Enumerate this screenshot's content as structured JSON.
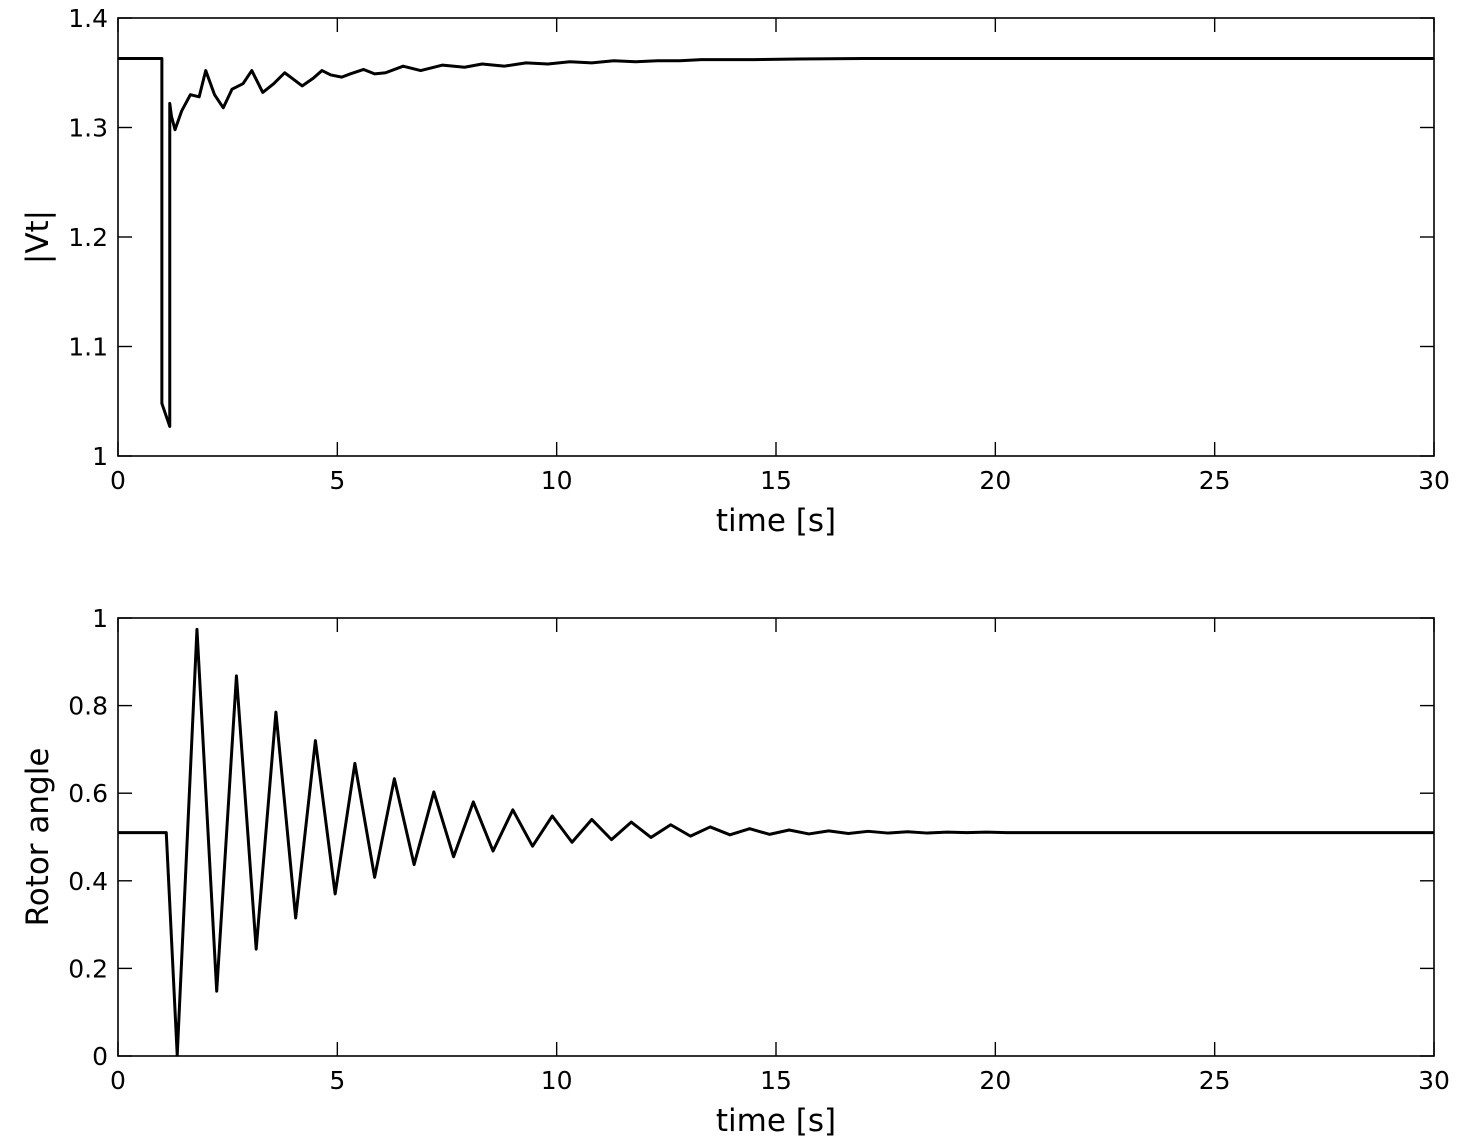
{
  "chart_data": [
    {
      "type": "line",
      "title": "",
      "xlabel": "time [s]",
      "ylabel": "|Vt|",
      "xlim": [
        0,
        30
      ],
      "ylim": [
        1,
        1.4
      ],
      "xticks": [
        0,
        5,
        10,
        15,
        20,
        25,
        30
      ],
      "xtick_labels": [
        "0",
        "5",
        "10",
        "15",
        "20",
        "25",
        "30"
      ],
      "yticks": [
        1,
        1.1,
        1.2,
        1.3,
        1.4
      ],
      "ytick_labels": [
        "1",
        "1.1",
        "1.2",
        "1.3",
        "1.4"
      ],
      "grid": false,
      "series": [
        {
          "color": "#000000",
          "x": [
            0,
            1.0,
            1.0,
            1.18,
            1.18,
            1.22,
            1.3,
            1.45,
            1.65,
            1.85,
            2.0,
            2.2,
            2.4,
            2.6,
            2.85,
            3.05,
            3.3,
            3.55,
            3.8,
            4.0,
            4.2,
            4.45,
            4.65,
            4.85,
            5.1,
            5.3,
            5.6,
            5.85,
            6.1,
            6.5,
            6.9,
            7.4,
            7.9,
            8.3,
            8.8,
            9.3,
            9.8,
            10.3,
            10.8,
            11.3,
            11.8,
            12.3,
            12.8,
            13.3,
            13.8,
            14.5,
            15.5,
            17,
            20,
            25,
            30
          ],
          "y": [
            1.363,
            1.363,
            1.048,
            1.027,
            1.322,
            1.31,
            1.298,
            1.315,
            1.33,
            1.328,
            1.352,
            1.33,
            1.318,
            1.335,
            1.34,
            1.352,
            1.332,
            1.34,
            1.35,
            1.344,
            1.338,
            1.345,
            1.352,
            1.348,
            1.346,
            1.349,
            1.353,
            1.349,
            1.35,
            1.356,
            1.352,
            1.357,
            1.355,
            1.358,
            1.356,
            1.359,
            1.358,
            1.36,
            1.359,
            1.361,
            1.36,
            1.361,
            1.361,
            1.362,
            1.362,
            1.362,
            1.3625,
            1.363,
            1.363,
            1.363,
            1.363
          ]
        }
      ]
    },
    {
      "type": "line",
      "title": "",
      "xlabel": "time [s]",
      "ylabel": "Rotor angle",
      "xlim": [
        0,
        30
      ],
      "ylim": [
        0,
        1
      ],
      "xticks": [
        0,
        5,
        10,
        15,
        20,
        25,
        30
      ],
      "xtick_labels": [
        "0",
        "5",
        "10",
        "15",
        "20",
        "25",
        "30"
      ],
      "yticks": [
        0,
        0.2,
        0.4,
        0.6,
        0.8,
        1
      ],
      "ytick_labels": [
        "0",
        "0.2",
        "0.4",
        "0.6",
        "0.8",
        "1"
      ],
      "grid": false,
      "series": [
        {
          "color": "#000000",
          "x": [
            0,
            1.0,
            1.1,
            1.35,
            1.8,
            2.25,
            2.7,
            3.15,
            3.6,
            4.05,
            4.5,
            4.95,
            5.4,
            5.85,
            6.3,
            6.75,
            7.2,
            7.65,
            8.1,
            8.55,
            9.0,
            9.45,
            9.9,
            10.35,
            10.8,
            11.25,
            11.7,
            12.15,
            12.6,
            13.05,
            13.5,
            13.95,
            14.4,
            14.85,
            15.3,
            15.75,
            16.2,
            16.65,
            17.1,
            17.55,
            18.0,
            18.45,
            18.9,
            19.35,
            19.8,
            20.25,
            20.7,
            21.5,
            25,
            30
          ],
          "y": [
            0.51,
            0.51,
            0.51,
            0.002,
            0.974,
            0.148,
            0.868,
            0.244,
            0.785,
            0.315,
            0.72,
            0.37,
            0.668,
            0.408,
            0.633,
            0.437,
            0.603,
            0.455,
            0.58,
            0.468,
            0.562,
            0.479,
            0.548,
            0.488,
            0.54,
            0.494,
            0.534,
            0.499,
            0.528,
            0.502,
            0.523,
            0.505,
            0.519,
            0.506,
            0.516,
            0.507,
            0.514,
            0.508,
            0.513,
            0.509,
            0.512,
            0.509,
            0.511,
            0.51,
            0.511,
            0.51,
            0.51,
            0.51,
            0.51,
            0.51
          ]
        }
      ]
    }
  ]
}
